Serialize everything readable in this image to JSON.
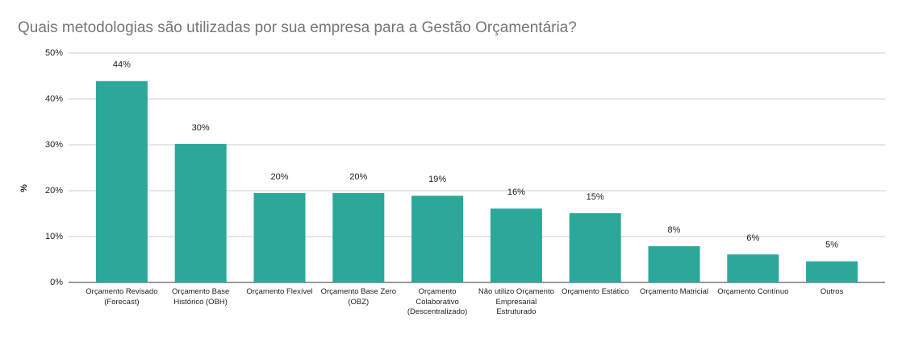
{
  "chart_data": {
    "type": "bar",
    "title": "Quais metodologias são utilizadas por sua empresa para a Gestão Orçamentária?",
    "y_label": "%",
    "categories": [
      "Orçamento Revisado (Forecast)",
      "Orçamento Base Histórico (OBH)",
      "Orçamento Flexível",
      "Orçamento Base Zero (OBZ)",
      "Orçamento Colaborativo (Descentralizado)",
      "Não utilizo Orçamento Empresarial Estruturado",
      "Orçamento Estático",
      "Orçamento Matricial",
      "Orçamento Contínuo",
      "Outros"
    ],
    "values": [
      43.9,
      30.2,
      19.5,
      19.5,
      18.9,
      16.1,
      15.1,
      7.9,
      6.1,
      4.6
    ],
    "value_labels": [
      "44%",
      "30%",
      "20%",
      "20%",
      "19%",
      "16%",
      "15%",
      "8%",
      "6%",
      "5%"
    ],
    "color": "#2ca89a",
    "ylim": [
      0,
      50
    ],
    "yticks": [
      {
        "value": 0,
        "label": "0%"
      },
      {
        "value": 10,
        "label": "10%"
      },
      {
        "value": 20,
        "label": "20%"
      },
      {
        "value": 30,
        "label": "30%"
      },
      {
        "value": 40,
        "label": "40%"
      },
      {
        "value": 50,
        "label": "50%"
      }
    ],
    "grid": true
  }
}
